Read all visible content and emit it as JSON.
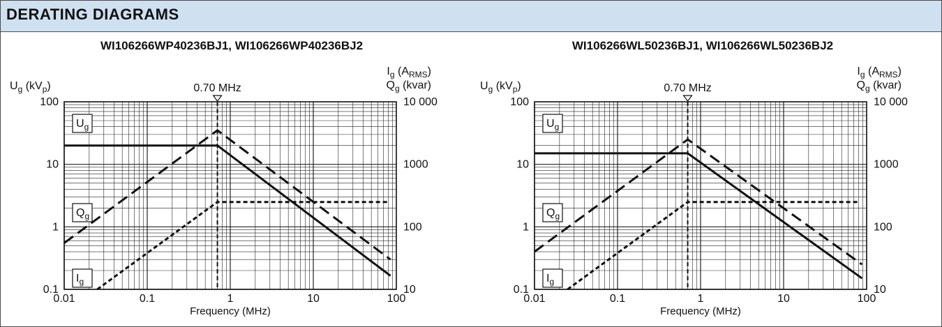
{
  "header": {
    "title": "DERATING DIAGRAMS"
  },
  "chart_data": [
    {
      "type": "line",
      "title": "WI106266WP40236BJ1, WI106266WP40236BJ2",
      "xlabel": "Frequency (MHz)",
      "x_scale": "log",
      "xlim": [
        0.01,
        100
      ],
      "x_ticks": [
        "0.01",
        "0.1",
        "1",
        "10",
        "100"
      ],
      "y_left": {
        "label": "Ug (kVp)",
        "scale": "log",
        "lim": [
          0.1,
          100
        ],
        "ticks": [
          "0.1",
          "1",
          "10",
          "100"
        ]
      },
      "y_right": {
        "label_top": "Ig (ARMS)",
        "label_bottom": "Qg (kvar)",
        "scale": "log",
        "lim": [
          10,
          10000
        ],
        "ticks": [
          "10",
          "100",
          "1000",
          "10 000"
        ]
      },
      "marker": {
        "label": "0.70 MHz",
        "x": 0.7
      },
      "series": [
        {
          "name": "Ug",
          "axis": "left",
          "style": "solid",
          "points": [
            [
              0.01,
              20
            ],
            [
              0.7,
              20
            ],
            [
              85,
              0.165
            ]
          ]
        },
        {
          "name": "Qg",
          "axis": "right",
          "style": "long-dash",
          "points": [
            [
              0.01,
              55
            ],
            [
              0.7,
              3500
            ],
            [
              85,
              30
            ]
          ]
        },
        {
          "name": "Ig",
          "axis": "right",
          "style": "short-dash",
          "points": [
            [
              0.025,
              10
            ],
            [
              0.7,
              250
            ],
            [
              80,
              250
            ]
          ]
        }
      ],
      "grid": true
    },
    {
      "type": "line",
      "title": "WI106266WL50236BJ1, WI106266WL50236BJ2",
      "xlabel": "Frequency (MHz)",
      "x_scale": "log",
      "xlim": [
        0.01,
        100
      ],
      "x_ticks": [
        "0.01",
        "0.1",
        "1",
        "10",
        "100"
      ],
      "y_left": {
        "label": "Ug (kVp)",
        "scale": "log",
        "lim": [
          0.1,
          100
        ],
        "ticks": [
          "0.1",
          "1",
          "10",
          "100"
        ]
      },
      "y_right": {
        "label_top": "Ig (ARMS)",
        "label_bottom": "Qg (kvar)",
        "scale": "log",
        "lim": [
          10,
          10000
        ],
        "ticks": [
          "10",
          "100",
          "1000",
          "10 000"
        ]
      },
      "marker": {
        "label": "0.70 MHz",
        "x": 0.7
      },
      "series": [
        {
          "name": "Ug",
          "axis": "left",
          "style": "solid",
          "points": [
            [
              0.01,
              15
            ],
            [
              0.7,
              15
            ],
            [
              88,
              0.15
            ]
          ]
        },
        {
          "name": "Qg",
          "axis": "right",
          "style": "long-dash",
          "points": [
            [
              0.01,
              40
            ],
            [
              0.7,
              2500
            ],
            [
              88,
              25
            ]
          ]
        },
        {
          "name": "Ig",
          "axis": "right",
          "style": "short-dash",
          "points": [
            [
              0.025,
              10
            ],
            [
              0.7,
              250
            ],
            [
              80,
              250
            ]
          ]
        }
      ],
      "grid": true
    }
  ],
  "colors": {
    "header_bg": "#cfe0f0",
    "line": "#111111",
    "grid": "#222222",
    "border": "#4a4a4a"
  }
}
